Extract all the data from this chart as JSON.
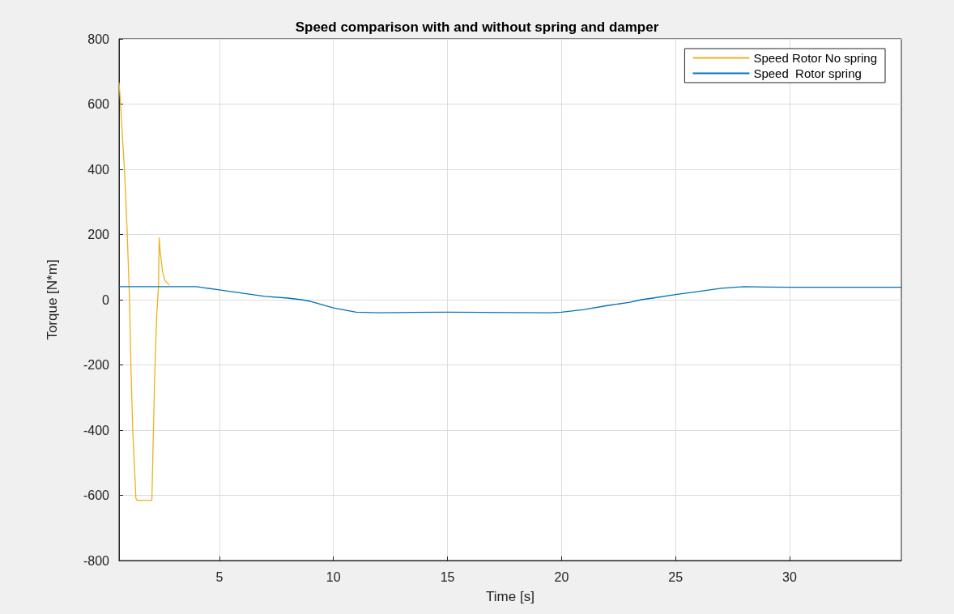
{
  "chart_data": {
    "type": "line",
    "title": "Speed comparison with and without spring and damper",
    "xlabel": "Time [s]",
    "ylabel": "Torque [N*m]",
    "xlim": [
      0.6,
      34.9
    ],
    "xticks": [
      5,
      10,
      15,
      20,
      25,
      30
    ],
    "ylim": [
      -800,
      800
    ],
    "yticks": [
      -800,
      -600,
      -400,
      -200,
      0,
      200,
      400,
      600,
      800
    ],
    "grid": true,
    "legend": "top right",
    "marker": "none",
    "line_style": "solid",
    "series": [
      {
        "name": "Speed Rotor No spring",
        "color": "#edb120",
        "x": [
          0.6,
          0.65,
          0.75,
          0.85,
          0.95,
          1.0,
          1.06,
          1.12,
          1.2,
          1.3,
          1.34,
          1.4,
          2.04,
          2.1,
          2.17,
          2.25,
          2.33,
          2.36,
          2.4,
          2.5,
          2.6,
          2.8
        ],
        "values": [
          665,
          620,
          500,
          380,
          220,
          120,
          0,
          -200,
          -400,
          -550,
          -610,
          -615,
          -615,
          -420,
          -220,
          -50,
          40,
          190,
          150,
          90,
          60,
          45
        ]
      },
      {
        "name": "Speed  Rotor spring",
        "color": "#0072bd",
        "x": [
          0.6,
          2,
          4,
          5,
          6,
          7,
          8,
          8.6,
          9,
          10,
          11,
          12,
          15,
          19.5,
          20,
          21,
          22,
          23,
          23.5,
          24,
          25,
          26,
          27,
          28,
          29,
          30,
          32,
          34.9
        ],
        "values": [
          40,
          40,
          40,
          30,
          20,
          10,
          5,
          0,
          -5,
          -25,
          -38,
          -40,
          -38,
          -40,
          -38,
          -30,
          -18,
          -8,
          0,
          5,
          16,
          25,
          35,
          40,
          39,
          38,
          38,
          38
        ]
      }
    ]
  }
}
